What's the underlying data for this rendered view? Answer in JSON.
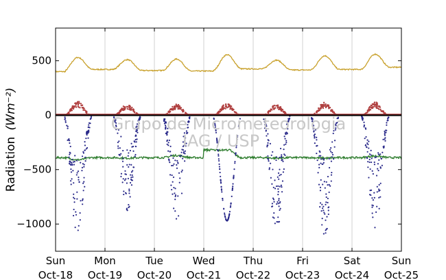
{
  "chart_data": {
    "type": "scatter",
    "title": "",
    "ylabel": "Radiation",
    "ylabel_unit": "(Wm⁻²)",
    "xlim": [
      0,
      7
    ],
    "ylim": [
      -1250,
      800
    ],
    "yticks": [
      500,
      0,
      -500,
      -1000
    ],
    "ytick_labels": [
      "500",
      "0",
      "−500",
      "−1000"
    ],
    "xticks": [
      {
        "x": 0,
        "day": "Sun",
        "date": "Oct-18"
      },
      {
        "x": 1,
        "day": "Mon",
        "date": "Oct-19"
      },
      {
        "x": 2,
        "day": "Tue",
        "date": "Oct-20"
      },
      {
        "x": 3,
        "day": "Wed",
        "date": "Oct-21"
      },
      {
        "x": 4,
        "day": "Thu",
        "date": "Oct-22"
      },
      {
        "x": 5,
        "day": "Fri",
        "date": "Oct-23"
      },
      {
        "x": 6,
        "day": "Sat",
        "date": "Oct-24"
      },
      {
        "x": 7,
        "day": "Sun",
        "date": "Oct-25"
      }
    ],
    "grid": "vertical",
    "watermark": [
      "Grupo de Micrometeorologia",
      "IAG / USP"
    ],
    "series": [
      {
        "color": "#c8a02a",
        "kind": "line",
        "baseline": 400,
        "daily_peak": [
          530,
          510,
          515,
          555,
          505,
          545,
          560
        ],
        "night_level": [
          420,
          410,
          405,
          425,
          415,
          420,
          440
        ]
      },
      {
        "color": "#2e7d2e",
        "kind": "line",
        "baseline": -390,
        "values_note_free": true,
        "daily_peak": [
          -410,
          -395,
          -370,
          -320,
          -395,
          -395,
          -375
        ]
      },
      {
        "color": "#b04040",
        "kind": "points",
        "daily_peak": [
          130,
          100,
          100,
          110,
          100,
          120,
          120
        ]
      },
      {
        "color": "#2a2a8a",
        "kind": "points",
        "daily_min": [
          -1170,
          -900,
          -1000,
          -970,
          -1080,
          -1150,
          -1060
        ]
      },
      {
        "color": "#000000",
        "kind": "zero-line"
      }
    ]
  }
}
